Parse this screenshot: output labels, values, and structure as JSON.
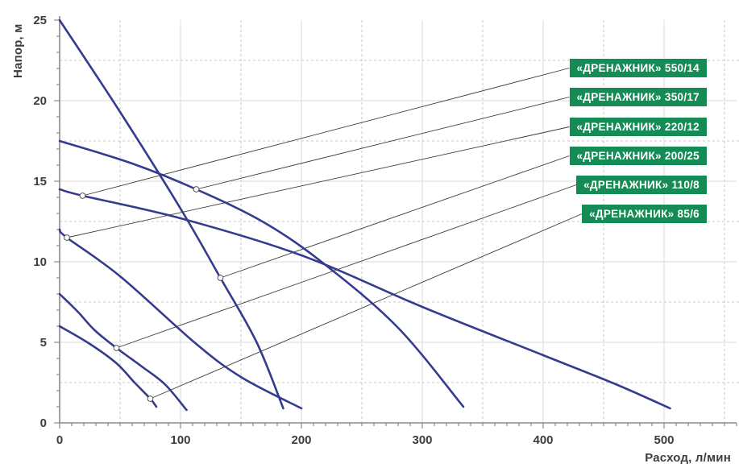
{
  "chart": {
    "y_axis_title": "Напор, м",
    "x_axis_title": "Расход, л/мин",
    "colors": {
      "curve": "#353c8e",
      "badge_bg": "#158c55",
      "badge_text": "#ffffff",
      "axis": "#8a8a8a",
      "grid_major": "#dadada",
      "grid_minor": "#c7c7c7",
      "leader_line": "#3a3a3a",
      "marker_fill": "#ffffff",
      "marker_stroke": "#555555",
      "tick_label": "#3d3d3d"
    }
  },
  "chart_data": {
    "type": "line",
    "title": "",
    "xlabel": "Расход, л/мин",
    "ylabel": "Напор, м",
    "xlim": [
      0,
      560
    ],
    "ylim": [
      0,
      25
    ],
    "x_major_ticks": [
      0,
      100,
      200,
      300,
      400,
      500
    ],
    "x_minor_step": 10,
    "y_major_ticks": [
      0,
      5,
      10,
      15,
      20,
      25
    ],
    "y_minor_step": 1,
    "grid": {
      "major_solid_x_step": 100,
      "major_solid_y_step": 5,
      "dashed_x_offsets": [
        50,
        150,
        250,
        350,
        450,
        550
      ],
      "dashed_y_offsets": [
        2.5,
        7.5,
        12.5,
        17.5,
        22.5
      ]
    },
    "legend_position": "right-top-badges",
    "series": [
      {
        "name": "«ДРЕНАЖНИК» 550/14",
        "label_point": [
          19,
          14.1
        ],
        "points": [
          [
            0,
            14.5
          ],
          [
            19,
            14.1
          ],
          [
            100,
            12.7
          ],
          [
            200,
            10.4
          ],
          [
            300,
            7.2
          ],
          [
            400,
            4.2
          ],
          [
            460,
            2.4
          ],
          [
            505,
            0.9
          ]
        ]
      },
      {
        "name": "«ДРЕНАЖНИК» 350/17",
        "label_point": [
          113,
          14.5
        ],
        "points": [
          [
            0,
            17.5
          ],
          [
            60,
            16.1
          ],
          [
            113,
            14.5
          ],
          [
            170,
            12.4
          ],
          [
            220,
            9.8
          ],
          [
            280,
            5.9
          ],
          [
            334,
            1.0
          ]
        ]
      },
      {
        "name": "«ДРЕНАЖНИК» 220/12",
        "label_point": [
          6,
          11.5
        ],
        "points": [
          [
            0,
            12
          ],
          [
            6,
            11.5
          ],
          [
            50,
            9.1
          ],
          [
            113,
            4.9
          ],
          [
            151,
            2.8
          ],
          [
            200,
            0.9
          ]
        ]
      },
      {
        "name": "«ДРЕНАЖНИК» 200/25",
        "label_point": [
          133,
          9.0
        ],
        "points": [
          [
            0,
            25
          ],
          [
            50,
            19.3
          ],
          [
            100,
            13.3
          ],
          [
            133,
            9.0
          ],
          [
            163,
            5.0
          ],
          [
            185,
            0.9
          ]
        ]
      },
      {
        "name": "«ДРЕНАЖНИК» 110/8",
        "label_point": [
          47,
          4.65
        ],
        "points": [
          [
            0,
            8
          ],
          [
            15,
            6.9
          ],
          [
            29,
            5.75
          ],
          [
            47,
            4.65
          ],
          [
            67,
            3.55
          ],
          [
            87,
            2.4
          ],
          [
            105,
            0.8
          ]
        ]
      },
      {
        "name": "«ДРЕНАЖНИК» 85/6",
        "label_point": [
          75,
          1.5
        ],
        "points": [
          [
            0,
            6
          ],
          [
            25,
            4.9
          ],
          [
            47,
            3.7
          ],
          [
            62,
            2.5
          ],
          [
            75,
            1.5
          ],
          [
            80,
            1.0
          ]
        ]
      }
    ]
  }
}
